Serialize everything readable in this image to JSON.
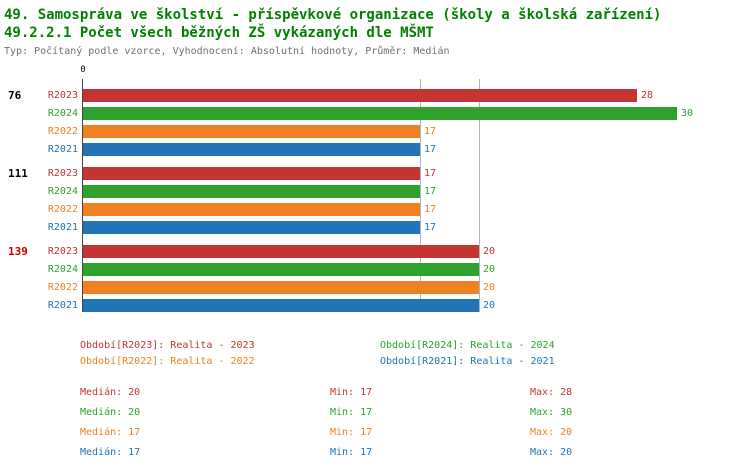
{
  "header": {
    "title": "49. Samospráva ve školství - příspěvkové organizace (školy a školská zařízení)",
    "subtitle": "49.2.2.1 Počet všech běžných ZŠ vykázaných dle MŠMT",
    "meta": "Typ: Počítaný podle vzorce, Vyhodnocení: Absolutní hodnoty, Průměr: Medián"
  },
  "colors": {
    "R2023": "#c43531",
    "R2024": "#2fa12d",
    "R2022": "#ef8122",
    "R2021": "#2274b5",
    "title_green": "#008000",
    "meta_gray": "#707070",
    "group_label_default": "#000000",
    "group_label_highlight": "#cc0000",
    "gridline": "#a3b8c8",
    "axis": "#444444"
  },
  "chart_data": {
    "type": "bar",
    "orientation": "horizontal",
    "axis_zero_label": "0",
    "x_start": 0,
    "gridline_values": [
      17,
      20
    ],
    "series_order": [
      "R2023",
      "R2024",
      "R2022",
      "R2021"
    ],
    "groups": [
      {
        "label": "76",
        "label_color": "#000000",
        "bars": [
          {
            "series": "R2023",
            "value": 28
          },
          {
            "series": "R2024",
            "value": 30
          },
          {
            "series": "R2022",
            "value": 17
          },
          {
            "series": "R2021",
            "value": 17
          }
        ]
      },
      {
        "label": "111",
        "label_color": "#000000",
        "bars": [
          {
            "series": "R2023",
            "value": 17
          },
          {
            "series": "R2024",
            "value": 17
          },
          {
            "series": "R2022",
            "value": 17
          },
          {
            "series": "R2021",
            "value": 17
          }
        ]
      },
      {
        "label": "139",
        "label_color": "#cc0000",
        "bars": [
          {
            "series": "R2023",
            "value": 20
          },
          {
            "series": "R2024",
            "value": 20
          },
          {
            "series": "R2022",
            "value": 20
          },
          {
            "series": "R2021",
            "value": 20
          }
        ]
      }
    ]
  },
  "legend": {
    "items": [
      {
        "series": "R2023",
        "text": "Období[R2023]: Realita - 2023"
      },
      {
        "series": "R2024",
        "text": "Období[R2024]: Realita - 2024"
      },
      {
        "series": "R2022",
        "text": "Období[R2022]: Realita - 2022"
      },
      {
        "series": "R2021",
        "text": "Období[R2021]: Realita - 2021"
      }
    ]
  },
  "stats": {
    "rows": [
      {
        "series": "R2023",
        "median": "Medián: 20",
        "min": "Min: 17",
        "max": "Max: 28"
      },
      {
        "series": "R2024",
        "median": "Medián: 20",
        "min": "Min: 17",
        "max": "Max: 30"
      },
      {
        "series": "R2022",
        "median": "Medián: 17",
        "min": "Min: 17",
        "max": "Max: 20"
      },
      {
        "series": "R2021",
        "median": "Medián: 17",
        "min": "Min: 17",
        "max": "Max: 20"
      }
    ]
  }
}
